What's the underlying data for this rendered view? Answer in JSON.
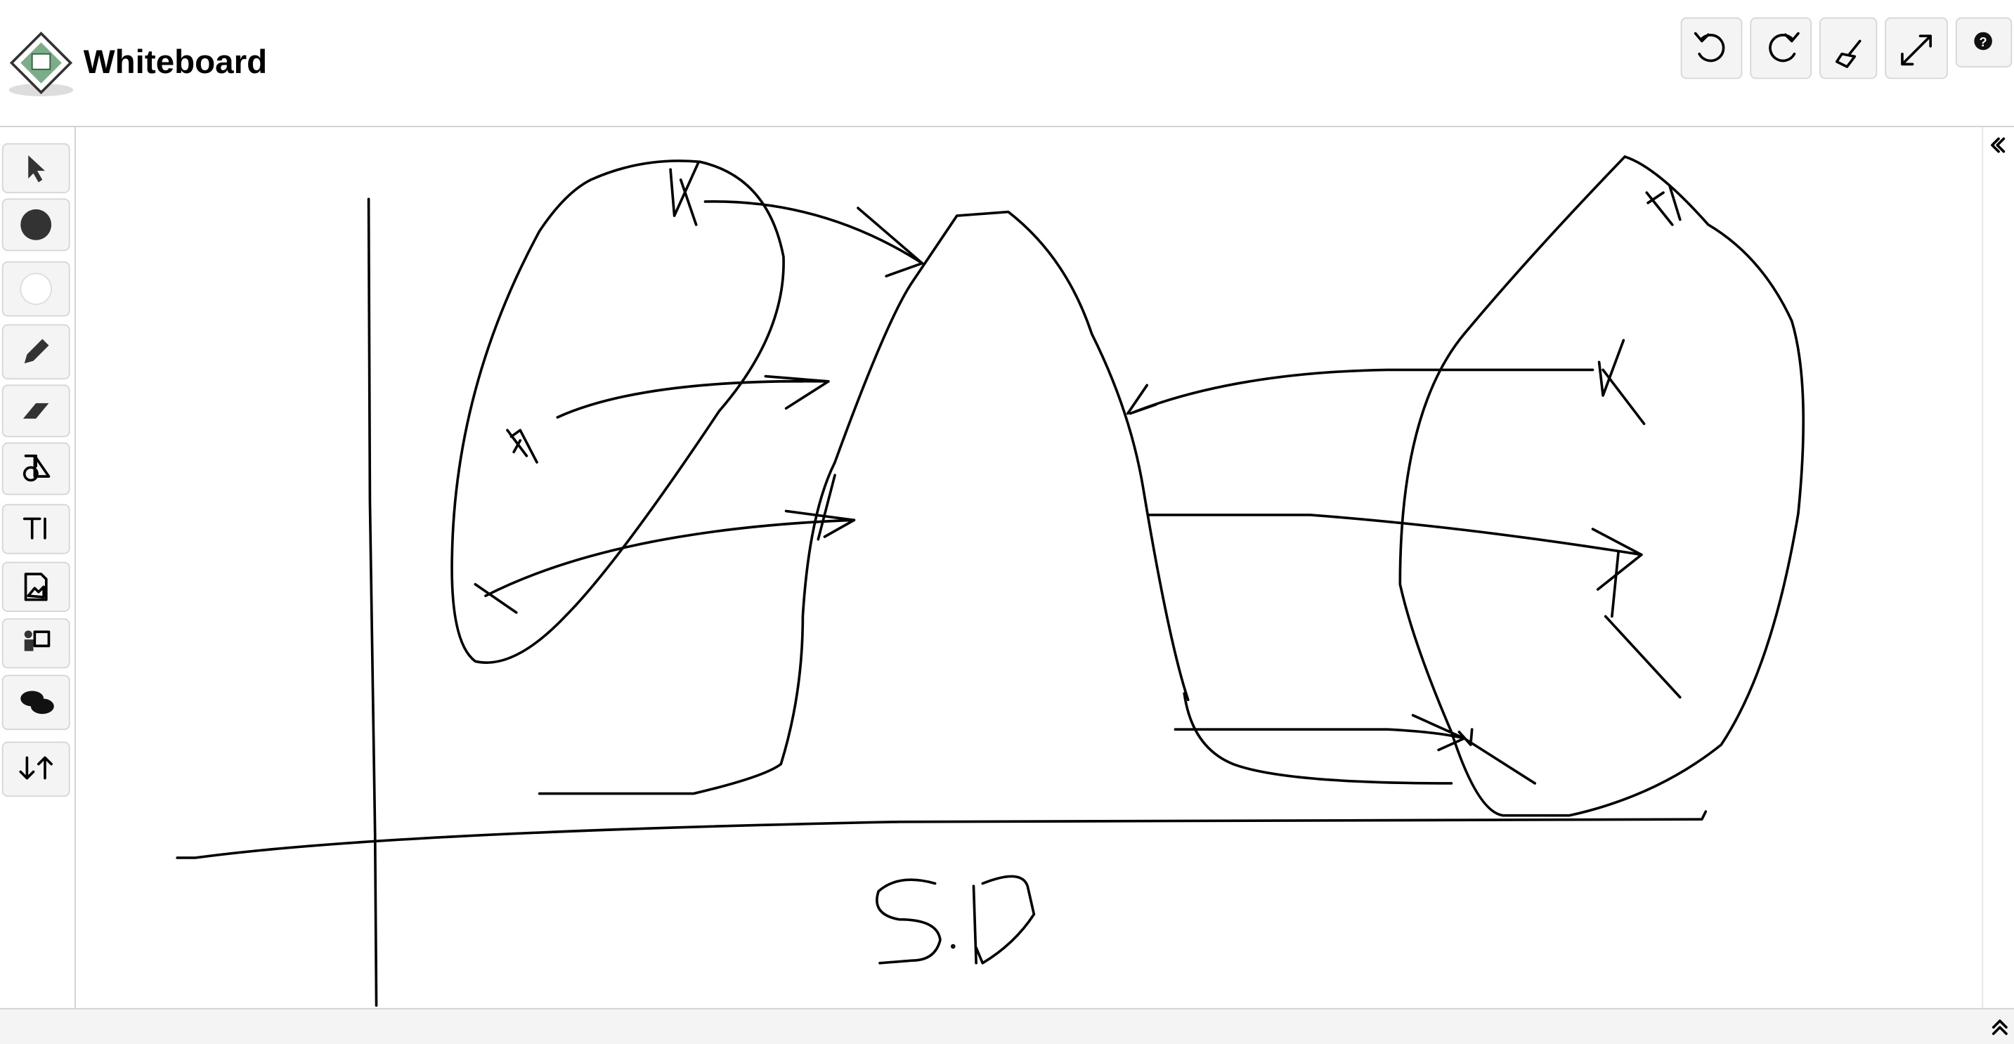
{
  "header": {
    "title": "Whiteboard"
  }
}
